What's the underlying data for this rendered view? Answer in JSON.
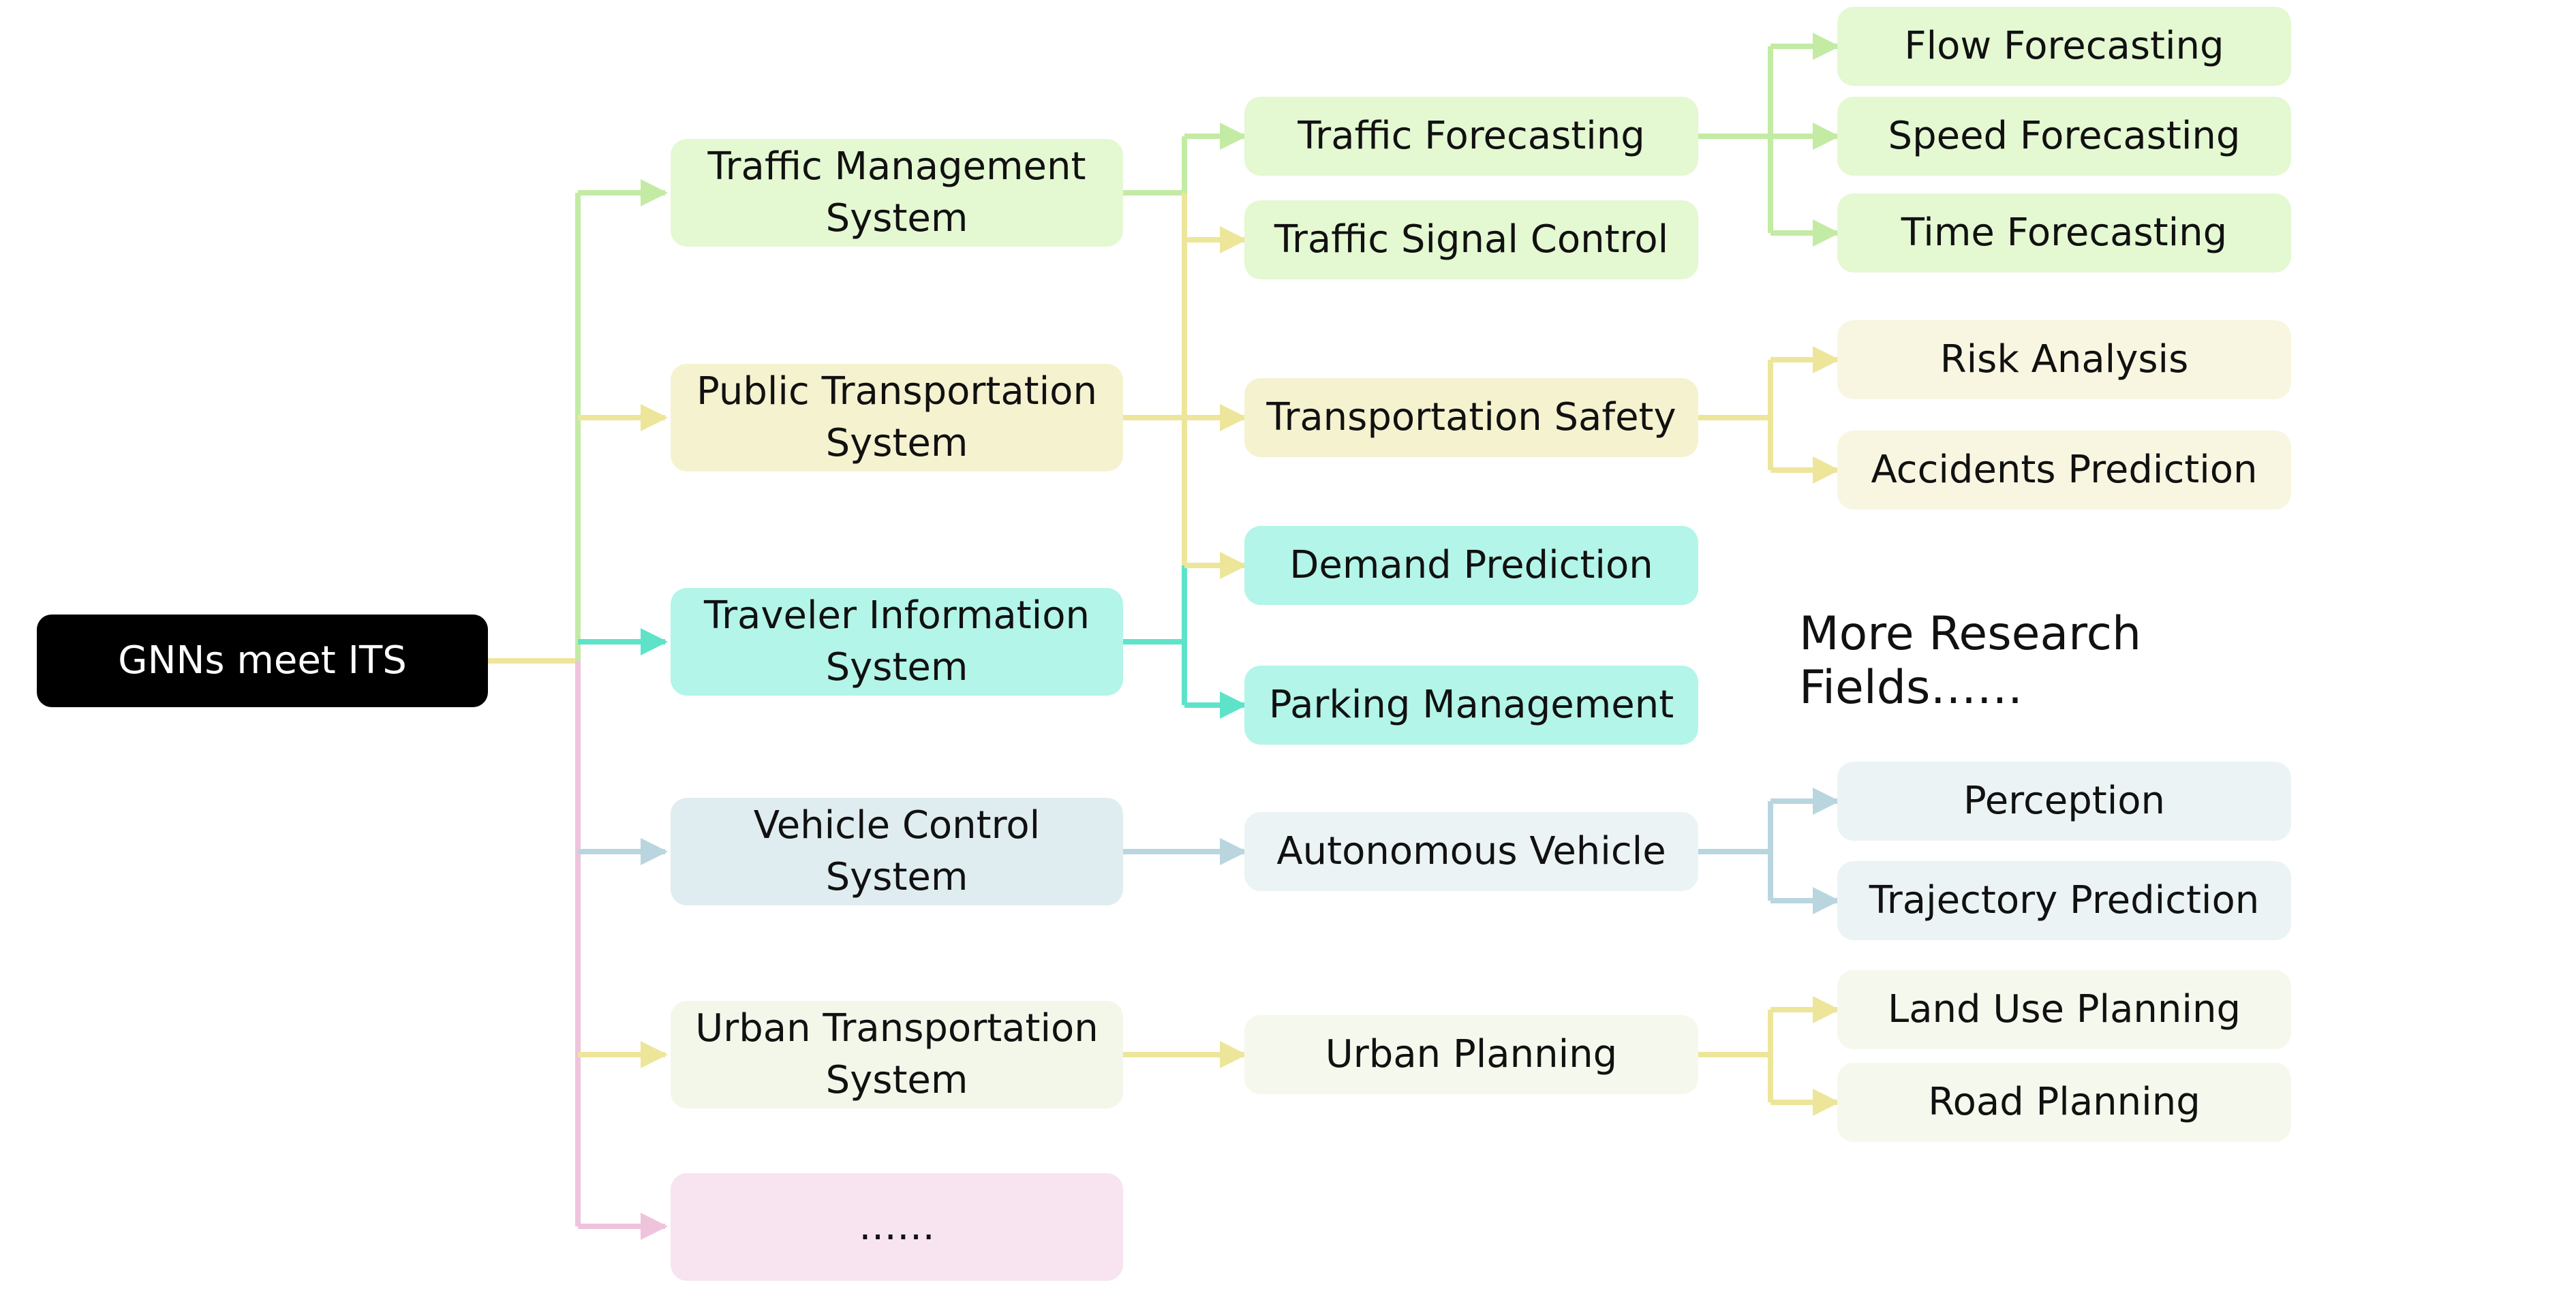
{
  "root": {
    "label": "GNNs meet ITS"
  },
  "systems": [
    {
      "id": "tms",
      "label": "Traffic Management\nSystem"
    },
    {
      "id": "pts",
      "label": "Public Transportation\nSystem"
    },
    {
      "id": "tis",
      "label": "Traveler Information\nSystem"
    },
    {
      "id": "vcs",
      "label": "Vehicle Control\nSystem"
    },
    {
      "id": "uts",
      "label": "Urban Transportation\nSystem"
    },
    {
      "id": "more",
      "label": "……"
    }
  ],
  "fields": [
    {
      "id": "tf",
      "label": "Traffic Forecasting"
    },
    {
      "id": "tsc",
      "label": "Traffic Signal Control"
    },
    {
      "id": "ts",
      "label": "Transportation Safety"
    },
    {
      "id": "dp",
      "label": "Demand Prediction"
    },
    {
      "id": "pm",
      "label": "Parking Management"
    },
    {
      "id": "av",
      "label": "Autonomous Vehicle"
    },
    {
      "id": "up",
      "label": "Urban Planning"
    }
  ],
  "tasks": [
    {
      "id": "ff",
      "label": "Flow Forecasting"
    },
    {
      "id": "sf",
      "label": "Speed Forecasting"
    },
    {
      "id": "tmf",
      "label": "Time Forecasting"
    },
    {
      "id": "ra",
      "label": "Risk Analysis"
    },
    {
      "id": "ap",
      "label": "Accidents Prediction"
    },
    {
      "id": "per",
      "label": "Perception"
    },
    {
      "id": "trp",
      "label": "Trajectory Prediction"
    },
    {
      "id": "lup",
      "label": "Land Use Planning"
    },
    {
      "id": "rp",
      "label": "Road Planning"
    }
  ],
  "more_fields": {
    "label": "More Research Fields……"
  },
  "colors": {
    "green": "#c3eba4",
    "yellow": "#ede69a",
    "teal": "#5ee3c9",
    "blue": "#b9d6df",
    "pink": "#f0c3dc",
    "root": "#000000"
  }
}
